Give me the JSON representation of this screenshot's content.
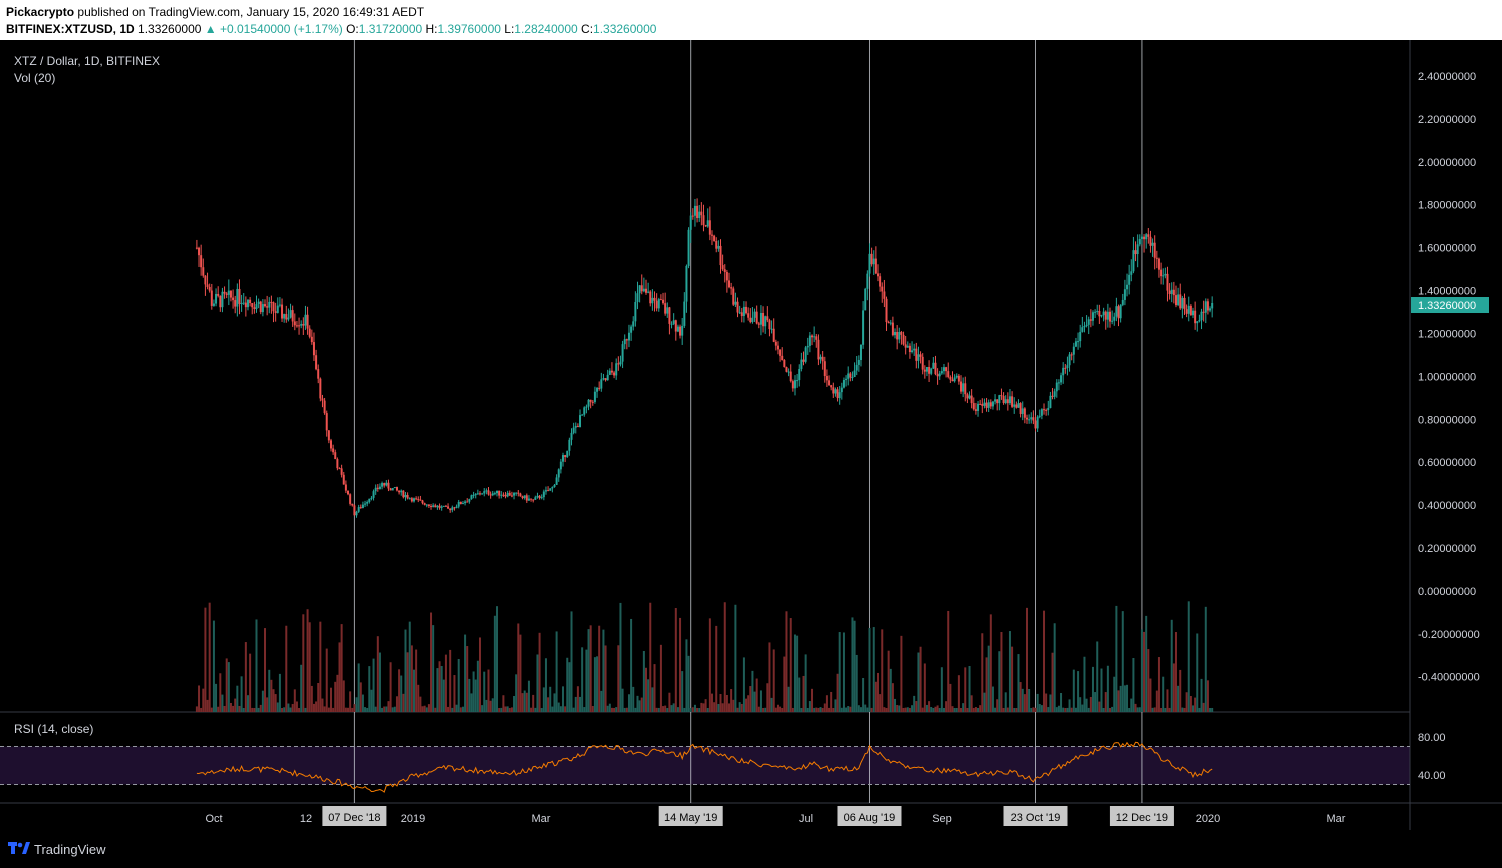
{
  "header": {
    "author": "Pickacrypto",
    "published": "published on TradingView.com, January 15, 2020 16:49:31 AEDT",
    "symbol": "BITFINEX:XTZUSD, 1D",
    "last": "1.33260000",
    "change": "▲ +0.01540000 (+1.17%)",
    "o_label": "O:",
    "o": "1.31720000",
    "h_label": "H:",
    "h": "1.39760000",
    "l_label": "L:",
    "l": "1.28240000",
    "c_label": "C:",
    "c": "1.33260000"
  },
  "legend": {
    "symbol": "XTZ / Dollar, 1D, BITFINEX",
    "volume": "Vol (20)",
    "rsi": "RSI (14, close)"
  },
  "footer": {
    "brand": "TradingView"
  },
  "colors": {
    "up": "#26a69a",
    "down": "#ef5350",
    "vol_up": "#1f5e58",
    "vol_down": "#7a2a2a",
    "rsi_line": "#f57c00",
    "rsi_band": "#1e0f2e",
    "price_tag": "#26a69a"
  },
  "chart_data": [
    {
      "type": "candlestick",
      "title": "XTZ / Dollar, 1D, BITFINEX",
      "x": [
        "2018-09-24",
        "2018-10-01",
        "2018-10-15",
        "2018-11-01",
        "2018-11-15",
        "2018-11-25",
        "2018-12-07",
        "2018-12-20",
        "2019-01-05",
        "2019-01-20",
        "2019-02-05",
        "2019-02-20",
        "2019-03-01",
        "2019-03-10",
        "2019-03-20",
        "2019-04-01",
        "2019-04-10",
        "2019-04-20",
        "2019-05-01",
        "2019-05-10",
        "2019-05-14",
        "2019-05-25",
        "2019-06-05",
        "2019-06-20",
        "2019-07-01",
        "2019-07-10",
        "2019-07-20",
        "2019-08-01",
        "2019-08-06",
        "2019-08-15",
        "2019-09-01",
        "2019-09-15",
        "2019-09-25",
        "2019-10-10",
        "2019-10-23",
        "2019-11-01",
        "2019-11-15",
        "2019-12-01",
        "2019-12-12",
        "2019-12-25",
        "2020-01-05",
        "2020-01-14"
      ],
      "close": [
        1.6,
        1.35,
        1.37,
        1.3,
        1.25,
        0.7,
        0.36,
        0.5,
        0.42,
        0.38,
        0.46,
        0.45,
        0.42,
        0.48,
        0.75,
        0.95,
        1.05,
        1.4,
        1.32,
        1.2,
        1.8,
        1.65,
        1.3,
        1.25,
        0.95,
        1.2,
        0.9,
        1.05,
        1.6,
        1.25,
        1.05,
        1.0,
        0.85,
        0.9,
        0.78,
        0.92,
        1.25,
        1.3,
        1.7,
        1.4,
        1.28,
        1.33
      ],
      "xticks": [
        "Oct",
        "12",
        "2019",
        "Mar",
        "May",
        "Jul",
        "Sep",
        "2020",
        "Mar"
      ],
      "xlabels_highlighted": [
        "07 Dec '18",
        "14 May '19",
        "06 Aug '19",
        "23 Oct '19",
        "12 Dec '19"
      ],
      "yticks": [
        "2.40000000",
        "2.20000000",
        "2.00000000",
        "1.80000000",
        "1.60000000",
        "1.40000000",
        "1.20000000",
        "1.00000000",
        "0.80000000",
        "0.60000000",
        "0.40000000",
        "0.20000000",
        "0.00000000",
        "-0.20000000",
        "-0.40000000"
      ],
      "ylim": [
        -0.5,
        2.5
      ],
      "last_price": "1.33260000"
    },
    {
      "type": "line",
      "title": "RSI (14, close)",
      "yticks": [
        "80.00",
        "40.00"
      ],
      "bands": [
        70,
        30
      ],
      "values": [
        42,
        43,
        47,
        45,
        40,
        35,
        28,
        24,
        40,
        48,
        44,
        42,
        46,
        52,
        58,
        72,
        68,
        62,
        66,
        60,
        70,
        64,
        55,
        50,
        45,
        52,
        45,
        48,
        70,
        55,
        45,
        44,
        40,
        44,
        35,
        46,
        62,
        72,
        72,
        52,
        40,
        46
      ]
    }
  ]
}
